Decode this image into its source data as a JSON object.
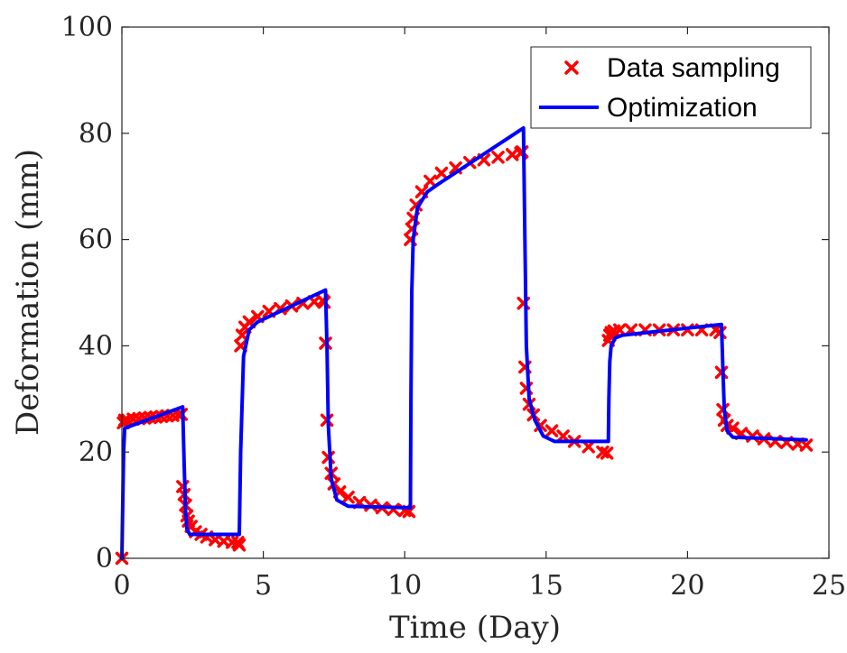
{
  "chart_data": {
    "type": "scatter",
    "xlabel": "Time (Day)",
    "ylabel": "Deformation (mm)",
    "xlim": [
      0,
      25
    ],
    "ylim": [
      0,
      100
    ],
    "xticks": [
      0,
      5,
      10,
      15,
      20,
      25
    ],
    "yticks": [
      0,
      20,
      40,
      60,
      80,
      100
    ],
    "xtick_labels": [
      "0",
      "5",
      "10",
      "15",
      "20",
      "25"
    ],
    "ytick_labels": [
      "0",
      "20",
      "40",
      "60",
      "80",
      "100"
    ],
    "grid": false,
    "legend_position": "top-right",
    "series": [
      {
        "name": "Data sampling",
        "kind": "markers",
        "marker": "x",
        "color": "#ff0000",
        "x": [
          0,
          0.05,
          0.1,
          0.2,
          0.4,
          0.6,
          0.8,
          1.0,
          1.2,
          1.4,
          1.6,
          1.8,
          2.0,
          2.1,
          2.15,
          2.2,
          2.25,
          2.3,
          2.35,
          2.45,
          2.6,
          2.8,
          3.0,
          3.3,
          3.6,
          3.9,
          4.1,
          4.15,
          4.2,
          4.25,
          4.35,
          4.5,
          4.8,
          5.2,
          5.6,
          6.0,
          6.4,
          6.8,
          7.1,
          7.15,
          7.2,
          7.25,
          7.3,
          7.4,
          7.5,
          7.7,
          8.0,
          8.4,
          8.8,
          9.2,
          9.6,
          10.0,
          10.15,
          10.2,
          10.25,
          10.3,
          10.4,
          10.6,
          10.9,
          11.3,
          11.8,
          12.3,
          12.8,
          13.3,
          13.8,
          14.1,
          14.15,
          14.2,
          14.25,
          14.3,
          14.4,
          14.55,
          14.8,
          15.2,
          15.6,
          16.0,
          16.5,
          17.0,
          17.15,
          17.2,
          17.25,
          17.3,
          17.4,
          17.6,
          18.0,
          18.5,
          19.0,
          19.5,
          20.0,
          20.5,
          21.0,
          21.15,
          21.2,
          21.25,
          21.3,
          21.4,
          21.6,
          21.9,
          22.3,
          22.7,
          23.1,
          23.5,
          23.9,
          24.2
        ],
        "y": [
          0,
          25.5,
          26.0,
          26.0,
          26.2,
          26.3,
          26.4,
          26.5,
          26.6,
          26.7,
          26.8,
          26.9,
          27.0,
          27.1,
          13.5,
          12.0,
          10.0,
          8.0,
          7.0,
          6.0,
          5.0,
          4.5,
          4.0,
          3.5,
          3.2,
          3.0,
          3.0,
          2.5,
          40.0,
          42.0,
          43.5,
          44.5,
          45.5,
          46.5,
          47.0,
          47.5,
          48.0,
          48.3,
          48.5,
          48.2,
          40.5,
          26.0,
          19.0,
          16.0,
          14.0,
          12.5,
          11.5,
          10.5,
          10.0,
          9.5,
          9.2,
          9.0,
          8.8,
          60.0,
          62.0,
          64.0,
          66.5,
          69.0,
          71.0,
          72.5,
          73.5,
          74.5,
          75.0,
          75.5,
          76.0,
          76.3,
          76.5,
          48.0,
          36.0,
          32.0,
          29.0,
          27.0,
          25.0,
          24.0,
          23.0,
          22.0,
          21.0,
          20.0,
          19.8,
          41.0,
          42.0,
          42.5,
          42.8,
          43.0,
          43.0,
          43.0,
          43.0,
          43.0,
          43.0,
          43.0,
          43.0,
          42.5,
          35.0,
          28.0,
          26.0,
          25.0,
          24.5,
          23.5,
          23.0,
          22.5,
          22.0,
          21.8,
          21.5,
          21.3
        ]
      },
      {
        "name": "Optimization",
        "kind": "line",
        "color": "#0000ff",
        "x": [
          0.0,
          0.03,
          0.06,
          0.1,
          2.15,
          2.2,
          2.25,
          2.3,
          2.4,
          4.15,
          4.2,
          4.3,
          4.5,
          4.8,
          7.2,
          7.25,
          7.3,
          7.4,
          7.6,
          8.0,
          10.2,
          10.22,
          10.25,
          10.3,
          10.45,
          10.8,
          11.2,
          14.2,
          14.25,
          14.3,
          14.4,
          14.6,
          14.9,
          15.3,
          17.2,
          17.22,
          17.25,
          17.3,
          17.45,
          17.7,
          21.2,
          21.25,
          21.3,
          21.4,
          21.6,
          24.2
        ],
        "y": [
          0.0,
          10.0,
          20.0,
          24.5,
          28.5,
          18.0,
          9.0,
          5.5,
          4.5,
          4.5,
          20.0,
          38.0,
          43.0,
          44.5,
          50.5,
          40.0,
          25.0,
          15.0,
          11.0,
          9.8,
          9.5,
          30.0,
          50.0,
          60.0,
          66.0,
          69.0,
          70.5,
          81.0,
          60.0,
          40.0,
          30.0,
          26.0,
          23.0,
          22.0,
          22.0,
          30.0,
          37.0,
          40.0,
          41.5,
          42.0,
          44.0,
          36.0,
          28.0,
          24.0,
          22.8,
          22.3
        ]
      }
    ]
  }
}
